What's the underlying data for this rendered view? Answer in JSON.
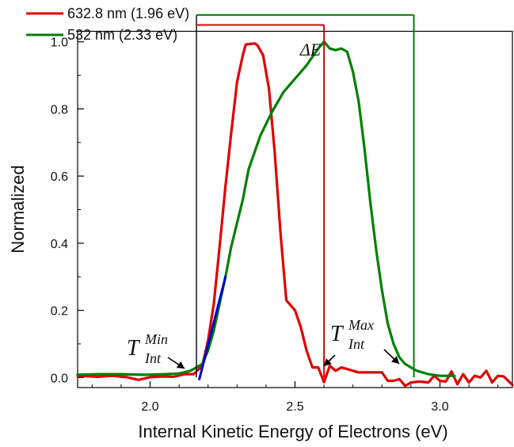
{
  "chart_data": {
    "type": "line",
    "xlabel": "Internal Kinetic Energy of Electrons (eV)",
    "ylabel": "Normalized",
    "xlim": [
      1.75,
      3.25
    ],
    "ylim": [
      -0.03,
      1.03
    ],
    "x_ticks": [
      2.0,
      2.5,
      3.0
    ],
    "x_tick_labels": [
      "2.0",
      "2.5",
      "3.0"
    ],
    "y_ticks": [
      0.0,
      0.2,
      0.4,
      0.6,
      0.8,
      1.0
    ],
    "y_tick_labels": [
      "0.0",
      "0.2",
      "0.4",
      "0.6",
      "0.8",
      "1.0"
    ],
    "legend_position": "top-left",
    "grid": false,
    "series": [
      {
        "name": "632.8 nm (1.96 eV)",
        "color": "#e00000",
        "points": [
          [
            1.75,
            0.005
          ],
          [
            1.78,
            0.004
          ],
          [
            1.82,
            0.002
          ],
          [
            1.87,
            0.005
          ],
          [
            1.92,
            0.001
          ],
          [
            1.96,
            -0.007
          ],
          [
            2.0,
            0.001
          ],
          [
            2.04,
            0.003
          ],
          [
            2.08,
            0.002
          ],
          [
            2.12,
            0.01
          ],
          [
            2.15,
            0.01
          ],
          [
            2.18,
            0.035
          ],
          [
            2.2,
            0.11
          ],
          [
            2.22,
            0.22
          ],
          [
            2.24,
            0.39
          ],
          [
            2.26,
            0.57
          ],
          [
            2.28,
            0.73
          ],
          [
            2.3,
            0.88
          ],
          [
            2.32,
            0.96
          ],
          [
            2.33,
            0.992
          ],
          [
            2.36,
            0.995
          ],
          [
            2.37,
            0.99
          ],
          [
            2.39,
            0.96
          ],
          [
            2.41,
            0.86
          ],
          [
            2.43,
            0.67
          ],
          [
            2.45,
            0.43
          ],
          [
            2.47,
            0.23
          ],
          [
            2.5,
            0.2
          ],
          [
            2.52,
            0.15
          ],
          [
            2.54,
            0.08
          ],
          [
            2.56,
            0.03
          ],
          [
            2.58,
            0.03
          ],
          [
            2.6,
            -0.014
          ],
          [
            2.62,
            0.035
          ],
          [
            2.64,
            0.02
          ],
          [
            2.66,
            0.03
          ],
          [
            2.68,
            0.025
          ],
          [
            2.7,
            0.02
          ],
          [
            2.72,
            0.015
          ],
          [
            2.76,
            0.015
          ],
          [
            2.8,
            0.015
          ],
          [
            2.82,
            -0.01
          ],
          [
            2.84,
            -0.01
          ],
          [
            2.86,
            -0.005
          ],
          [
            2.88,
            -0.025
          ],
          [
            2.9,
            -0.015
          ],
          [
            2.93,
            -0.012
          ],
          [
            2.96,
            -0.015
          ],
          [
            2.98,
            0.005
          ],
          [
            3.0,
            -0.01
          ],
          [
            3.02,
            -0.012
          ],
          [
            3.04,
            0.018
          ],
          [
            3.06,
            -0.02
          ],
          [
            3.08,
            0.01
          ],
          [
            3.1,
            -0.015
          ],
          [
            3.12,
            0.005
          ],
          [
            3.14,
            0.0
          ],
          [
            3.16,
            0.02
          ],
          [
            3.18,
            -0.015
          ],
          [
            3.2,
            0.005
          ],
          [
            3.22,
            0.003
          ],
          [
            3.25,
            -0.022
          ]
        ]
      },
      {
        "name": "532 nm (2.33 eV)",
        "color": "#008000",
        "points": [
          [
            1.75,
            0.008
          ],
          [
            1.82,
            0.01
          ],
          [
            1.9,
            0.01
          ],
          [
            1.98,
            0.008
          ],
          [
            2.05,
            0.01
          ],
          [
            2.1,
            0.012
          ],
          [
            2.14,
            0.02
          ],
          [
            2.18,
            0.04
          ],
          [
            2.2,
            0.08
          ],
          [
            2.22,
            0.14
          ],
          [
            2.24,
            0.22
          ],
          [
            2.26,
            0.3
          ],
          [
            2.28,
            0.39
          ],
          [
            2.3,
            0.46
          ],
          [
            2.32,
            0.53
          ],
          [
            2.34,
            0.62
          ],
          [
            2.36,
            0.67
          ],
          [
            2.38,
            0.72
          ],
          [
            2.42,
            0.79
          ],
          [
            2.46,
            0.85
          ],
          [
            2.5,
            0.89
          ],
          [
            2.54,
            0.93
          ],
          [
            2.58,
            0.98
          ],
          [
            2.6,
            1.0
          ],
          [
            2.62,
            0.98
          ],
          [
            2.64,
            0.975
          ],
          [
            2.66,
            0.98
          ],
          [
            2.68,
            0.97
          ],
          [
            2.7,
            0.91
          ],
          [
            2.72,
            0.82
          ],
          [
            2.74,
            0.68
          ],
          [
            2.76,
            0.52
          ],
          [
            2.78,
            0.38
          ],
          [
            2.8,
            0.26
          ],
          [
            2.82,
            0.16
          ],
          [
            2.84,
            0.1
          ],
          [
            2.86,
            0.06
          ],
          [
            2.88,
            0.04
          ],
          [
            2.9,
            0.03
          ],
          [
            2.92,
            0.02
          ],
          [
            2.96,
            0.01
          ],
          [
            3.0,
            0.005
          ],
          [
            3.05,
            0.005
          ]
        ]
      },
      {
        "color": "#0000cc",
        "points": [
          [
            2.17,
            -0.005
          ],
          [
            2.26,
            0.3
          ]
        ]
      }
    ],
    "annotations": {
      "delta_e": {
        "label": "ΔE",
        "color": "#008000",
        "x_start": 2.16,
        "x_end": 2.91,
        "level": 1.08
      },
      "red_bracket": {
        "color": "#e00000",
        "x_start": 2.16,
        "x_end": 2.6,
        "level": 1.05
      },
      "left_line": {
        "color": "#000000",
        "x": 2.16,
        "y_top": 1.08
      },
      "t_min": {
        "base": "T",
        "sup": "Min",
        "sub": "Int",
        "arrow_from": [
          2.12,
          0.05
        ],
        "arrow_to": [
          2.16,
          0.01
        ]
      },
      "t_max": {
        "base": "T",
        "sup": "Max",
        "sub": "Int",
        "arrow_from": [
          2.84,
          0.12
        ],
        "arrow_to": [
          2.92,
          0.06
        ]
      }
    }
  }
}
